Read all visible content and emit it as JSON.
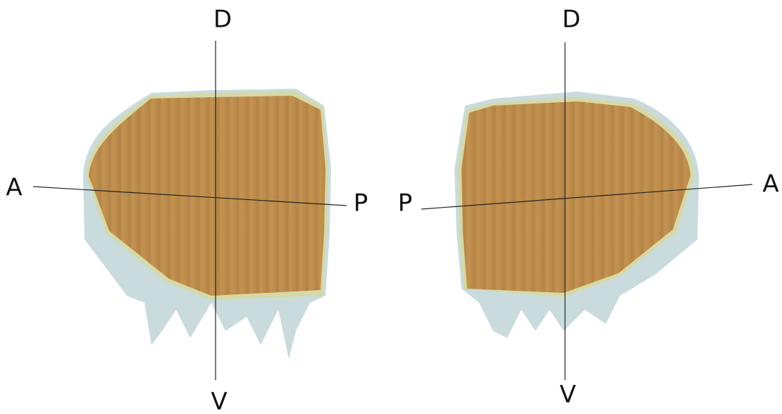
{
  "left_panel": {
    "dorsal": "D",
    "ventral": "V",
    "left_end": "A",
    "right_end": "P"
  },
  "right_panel": {
    "dorsal": "D",
    "ventral": "V",
    "left_end": "P",
    "right_end": "A"
  }
}
